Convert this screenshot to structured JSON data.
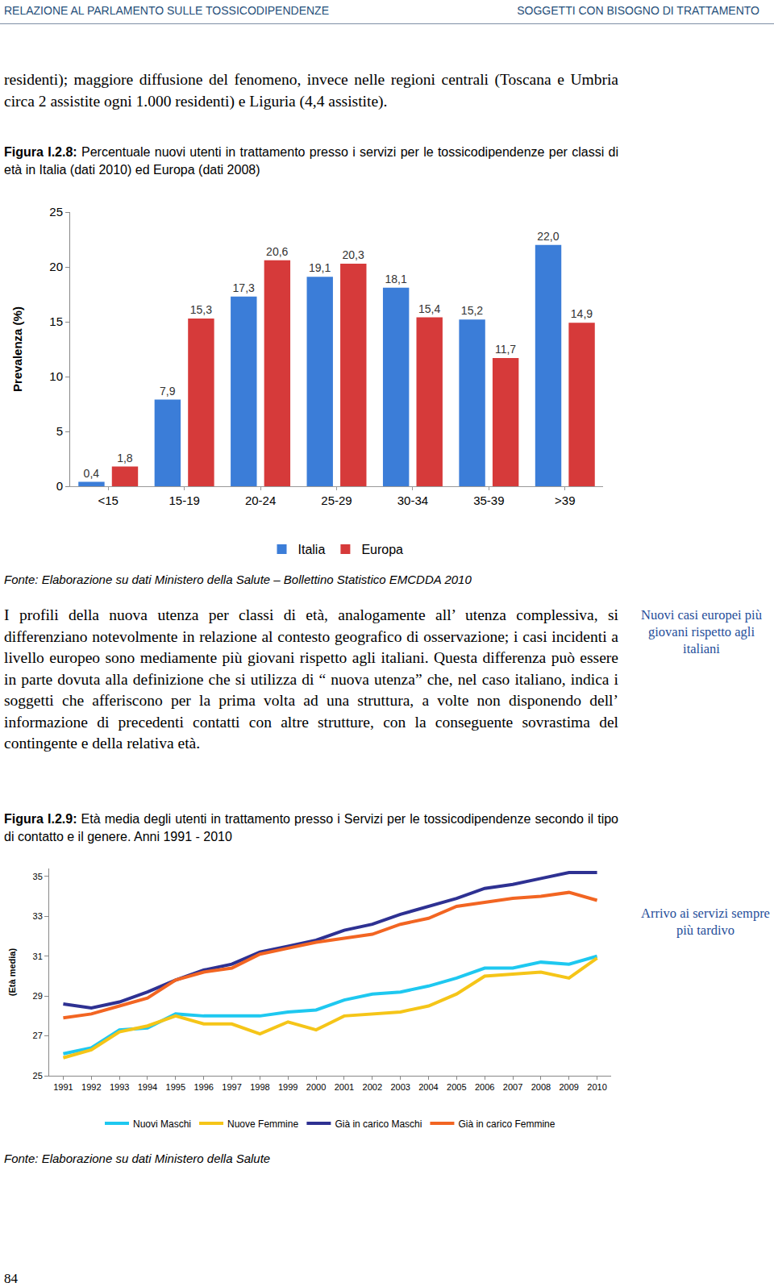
{
  "header": {
    "left": "RELAZIONE AL PARLAMENTO SULLE TOSSICODIPENDENZE",
    "right": "SOGGETTI CON BISOGNO DI TRATTAMENTO"
  },
  "paragraphs": [
    "residenti); maggiore diffusione del fenomeno, invece nelle regioni centrali (Toscana e Umbria circa 2 assistite ogni 1.000 residenti) e Liguria (4,4 assistite).",
    "I profili della nuova utenza per classi di età, analogamente all’ utenza complessiva, si differenziano notevolmente in relazione al contesto geografico di osservazione; i casi incidenti a livello europeo sono mediamente più giovani rispetto agli italiani. Questa differenza può essere in parte dovuta alla definizione che si utilizza di “ nuova utenza” che, nel caso italiano, indica i soggetti che afferiscono per la prima volta ad una struttura, a volte non disponendo dell’ informazione di precedenti contatti con altre strutture, con la conseguente sovrastima del contingente e della relativa età."
  ],
  "margin_notes": [
    "Nuovi casi europei più giovani rispetto agli italiani",
    "Arrivo ai servizi sempre più tardivo"
  ],
  "page_number": "84",
  "chart_data": [
    {
      "type": "bar",
      "figure": "Figura I.2.8:",
      "title": "Percentuale nuovi utenti in trattamento presso i servizi per le tossicodipendenze per classi di età in Italia (dati 2010) ed Europa (dati 2008)",
      "source": "Fonte: Elaborazione su dati Ministero della Salute – Bollettino Statistico EMCDDA 2010",
      "y_label": "Prevalenza (%)",
      "categories": [
        "<15",
        "15-19",
        "20-24",
        "25-29",
        "30-34",
        "35-39",
        ">39"
      ],
      "series": [
        {
          "name": "Italia",
          "color": "#3b7dd8",
          "values": [
            0.4,
            7.9,
            17.3,
            19.1,
            18.1,
            15.2,
            22.0
          ],
          "value_labels": [
            "0,4",
            "7,9",
            "17,3",
            "19,1",
            "18,1",
            "15,2",
            "22,0"
          ]
        },
        {
          "name": "Europa",
          "color": "#d63a3a",
          "values": [
            1.8,
            15.3,
            20.6,
            20.3,
            15.4,
            11.7,
            14.9
          ],
          "value_labels": [
            "1,8",
            "15,3",
            "20,6",
            "20,3",
            "15,4",
            "11,7",
            "14,9"
          ]
        }
      ],
      "ylim": [
        0,
        25
      ],
      "yticks": [
        0,
        5,
        10,
        15,
        20,
        25
      ],
      "grid": false,
      "data_labels": true,
      "legend": "bottom"
    },
    {
      "type": "line",
      "figure": "Figura I.2.9:",
      "title": "Età media degli utenti in trattamento presso i Servizi per le tossicodipendenze secondo il tipo di contatto e il genere. Anni 1991 - 2010",
      "source": "Fonte: Elaborazione su dati Ministero della Salute",
      "y_label": "(Età media)",
      "x": [
        1991,
        1992,
        1993,
        1994,
        1995,
        1996,
        1997,
        1998,
        1999,
        2000,
        2001,
        2002,
        2003,
        2004,
        2005,
        2006,
        2007,
        2008,
        2009,
        2010
      ],
      "xlim": [
        1990.5,
        2010.5
      ],
      "xticks": [
        1991,
        1992,
        1993,
        1994,
        1995,
        1996,
        1997,
        1998,
        1999,
        2000,
        2001,
        2002,
        2003,
        2004,
        2005,
        2006,
        2007,
        2008,
        2009,
        2010
      ],
      "series": [
        {
          "name": "Nuovi Maschi",
          "color": "#1ec8f0",
          "values": [
            26.1,
            26.4,
            27.3,
            27.4,
            28.1,
            28.0,
            28.0,
            28.0,
            28.2,
            28.3,
            28.8,
            29.1,
            29.2,
            29.5,
            29.9,
            30.4,
            30.4,
            30.7,
            30.6,
            31.0
          ]
        },
        {
          "name": "Nuove Femmine",
          "color": "#f5c518",
          "values": [
            25.9,
            26.3,
            27.2,
            27.5,
            28.0,
            27.6,
            27.6,
            27.1,
            27.7,
            27.3,
            28.0,
            28.1,
            28.2,
            28.5,
            29.1,
            30.0,
            30.1,
            30.2,
            29.9,
            30.9
          ]
        },
        {
          "name": "Già in carico Maschi",
          "color": "#2e3192",
          "values": [
            28.6,
            28.4,
            28.7,
            29.2,
            29.8,
            30.3,
            30.6,
            31.2,
            31.5,
            31.8,
            32.3,
            32.6,
            33.1,
            33.5,
            33.9,
            34.4,
            34.6,
            34.9,
            35.2,
            35.2
          ]
        },
        {
          "name": "Già in carico Femmine",
          "color": "#f26522",
          "values": [
            27.9,
            28.1,
            28.5,
            28.9,
            29.8,
            30.2,
            30.4,
            31.1,
            31.4,
            31.7,
            31.9,
            32.1,
            32.6,
            32.9,
            33.5,
            33.7,
            33.9,
            34.0,
            34.2,
            33.8
          ]
        }
      ],
      "ylim": [
        25,
        35.4
      ],
      "yticks": [
        25,
        27,
        29,
        31,
        33,
        35
      ],
      "grid": false,
      "legend": "bottom"
    }
  ]
}
